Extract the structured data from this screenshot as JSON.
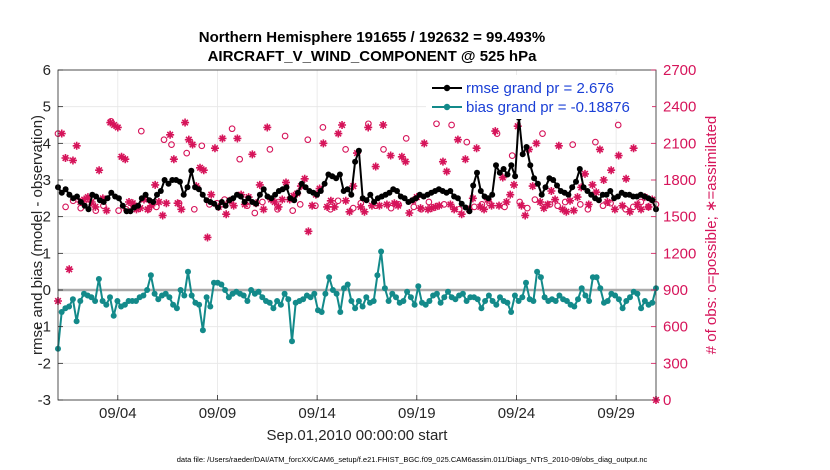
{
  "chart_data": {
    "type": "line",
    "title_line1": "Northern Hemisphere 191655 / 192632 = 99.493%",
    "title_line2": "AIRCRAFT_V_WIND_COMPONENT @ 525 hPa",
    "ylabel": "rmse and bias (model - observation)",
    "y2label": "# of obs: o=possible; ∗=assimilated",
    "xlabel": "Sep.01,2010 00:00:00 start",
    "footnote": "data file: /Users/raeder/DAI/ATM_forcXX/CAM6_setup/f.e21.FHIST_BGC.f09_025.CAM6assim.011/Diags_NTrS_2010-09/obs_diag_output.nc",
    "xlim": [
      0.0,
      30.0
    ],
    "ylim": [
      -3,
      6
    ],
    "y2lim": [
      0,
      2700
    ],
    "yticks": [
      "-3",
      "-2",
      "-1",
      "0",
      "1",
      "2",
      "3",
      "4",
      "5",
      "6"
    ],
    "y2ticks": [
      "0",
      "300",
      "600",
      "900",
      "1200",
      "1500",
      "1800",
      "2100",
      "2400",
      "2700"
    ],
    "xtick_days": [
      3,
      8,
      13,
      18,
      23,
      28
    ],
    "xtick_labels": [
      "09/04",
      "09/09",
      "09/14",
      "09/19",
      "09/24",
      "09/29"
    ],
    "colors": {
      "rmse": "#000000",
      "bias": "#138a8a",
      "obs": "#d6145a",
      "legend_text": "#1a3fd6",
      "zero": "#aaaaaa"
    },
    "series": [
      {
        "name": "rmse grand pr = 2.676",
        "values": [
          2.8,
          2.65,
          2.75,
          2.6,
          2.5,
          2.55,
          2.4,
          2.3,
          2.2,
          2.6,
          2.55,
          2.45,
          2.4,
          2.5,
          2.65,
          2.55,
          2.5,
          2.3,
          2.15,
          2.15,
          2.25,
          2.3,
          2.5,
          2.6,
          2.45,
          2.4,
          2.6,
          2.7,
          3.0,
          2.9,
          3.0,
          3.0,
          2.95,
          2.6,
          2.8,
          3.25,
          2.8,
          2.75,
          2.6,
          2.45,
          2.4,
          2.35,
          2.25,
          2.4,
          2.3,
          2.45,
          2.5,
          2.6,
          2.55,
          2.4,
          2.5,
          2.4,
          2.35,
          2.6,
          2.75,
          2.55,
          2.5,
          2.6,
          2.7,
          2.75,
          2.8,
          2.5,
          2.45,
          2.65,
          2.9,
          2.8,
          2.7,
          2.65,
          2.6,
          2.7,
          2.9,
          3.15,
          3.1,
          3.05,
          3.15,
          2.7,
          2.75,
          2.6,
          3.5,
          3.8,
          2.5,
          2.45,
          2.6,
          2.4,
          2.5,
          2.55,
          2.6,
          2.65,
          2.75,
          2.7,
          2.55,
          2.5,
          2.4,
          2.45,
          2.5,
          2.6,
          2.55,
          2.6,
          2.65,
          2.7,
          2.75,
          2.7,
          2.65,
          2.7,
          2.55,
          2.5,
          2.35,
          2.25,
          2.15,
          2.85,
          3.2,
          2.7,
          2.55,
          2.5,
          2.6,
          3.4,
          3.2,
          3.3,
          3.15,
          3.4,
          3.1,
          4.7,
          3.7,
          3.9,
          3.4,
          3.05,
          2.9,
          2.6,
          2.8,
          3.05,
          3.0,
          2.85,
          2.7,
          2.65,
          2.6,
          2.8,
          2.95,
          3.3,
          2.8,
          2.7,
          2.6,
          2.5,
          2.45,
          2.6,
          2.6,
          2.7,
          2.5,
          2.55,
          2.65,
          2.6,
          2.6,
          2.55,
          2.55,
          2.6,
          2.55,
          2.5,
          2.45,
          2.2
        ]
      },
      {
        "name": "bias grand pr = -0.18876",
        "values": [
          -1.6,
          -0.6,
          -0.5,
          -0.45,
          -0.25,
          -0.85,
          -0.3,
          -0.1,
          -0.15,
          -0.2,
          -0.3,
          0.3,
          -0.3,
          -0.4,
          -0.2,
          -0.7,
          -0.3,
          -0.45,
          -0.4,
          -0.3,
          -0.3,
          -0.3,
          -0.2,
          -0.15,
          0.0,
          0.4,
          -0.1,
          -0.25,
          -0.15,
          -0.1,
          -0.2,
          -0.4,
          -0.5,
          0.0,
          -0.15,
          0.5,
          -0.15,
          -0.35,
          -0.4,
          -1.1,
          -0.2,
          -0.45,
          0.2,
          0.2,
          0.15,
          0.0,
          -0.2,
          -0.1,
          -0.05,
          -0.1,
          -0.15,
          -0.3,
          0.0,
          -0.1,
          -0.05,
          -0.2,
          -0.3,
          -0.35,
          -0.5,
          -0.3,
          -0.4,
          -0.1,
          -0.25,
          -1.4,
          -0.35,
          -0.3,
          -0.25,
          -0.15,
          -0.2,
          -0.1,
          -0.55,
          -0.6,
          -0.1,
          0.35,
          0.0,
          -0.1,
          -0.6,
          0.05,
          0.15,
          -0.3,
          -0.5,
          -0.3,
          -0.45,
          -0.2,
          -0.35,
          -0.3,
          0.4,
          1.05,
          0.05,
          -0.3,
          -0.1,
          -0.2,
          -0.35,
          -0.3,
          -0.05,
          -0.2,
          -0.4,
          0.1,
          -0.35,
          -0.4,
          -0.3,
          -0.15,
          -0.1,
          -0.35,
          -0.2,
          -0.05,
          -0.2,
          -0.25,
          -0.15,
          -0.1,
          -0.3,
          -0.2,
          -0.2,
          -0.25,
          -0.5,
          -0.3,
          -0.15,
          -0.3,
          -0.4,
          -0.2,
          -0.3,
          -0.35,
          -0.6,
          -0.15,
          -0.3,
          -0.2,
          0.2,
          -0.25,
          -0.3,
          0.5,
          0.35,
          -0.2,
          -0.3,
          -0.25,
          -0.3,
          -0.15,
          -0.25,
          -0.3,
          -0.4,
          -0.45,
          -0.25,
          0.05,
          -0.15,
          -0.3,
          0.35,
          0.35,
          0.05,
          -0.35,
          -0.3,
          -0.1,
          -0.15,
          -0.25,
          -0.5,
          -0.3,
          -0.2,
          -0.05,
          -0.1,
          -0.5,
          -0.3,
          -0.4,
          -0.35,
          0.05
        ]
      },
      {
        "name": "# of obs assimilated",
        "values": [
          810,
          2180,
          1980,
          1070,
          1960,
          2080,
          1620,
          1640,
          1660,
          1620,
          1580,
          1880,
          1650,
          1550,
          2270,
          2250,
          2230,
          1990,
          1970,
          1620,
          1610,
          1560,
          1570,
          1640,
          1560,
          1590,
          1760,
          1620,
          1510,
          1610,
          2170,
          1970,
          1610,
          1560,
          2270,
          2130,
          2090,
          1750,
          1900,
          1880,
          1330,
          1680,
          2060,
          1580,
          2140,
          1520,
          1630,
          1590,
          2140,
          1680,
          1600,
          1660,
          2010,
          1610,
          1760,
          1560,
          2230,
          1640,
          1620,
          1580,
          1640,
          1780,
          1640,
          1670,
          1690,
          1750,
          1810,
          1380,
          1590,
          1680,
          1730,
          2100,
          1580,
          1630,
          1580,
          2180,
          2250,
          1630,
          1540,
          1750,
          2020,
          1580,
          1540,
          2230,
          1590,
          1910,
          1590,
          2250,
          1600,
          2000,
          1610,
          1590,
          1990,
          1950,
          1530,
          1630,
          1660,
          1570,
          2100,
          1560,
          1570,
          1580,
          1590,
          1950,
          1870,
          1600,
          1560,
          2130,
          1520,
          1970,
          1560,
          1650,
          2060,
          1580,
          1560,
          1640,
          1590,
          2200,
          1590,
          1820,
          1620,
          1680,
          1760,
          2240,
          1590,
          1510,
          2050,
          1750,
          2100,
          1620,
          1570,
          1600,
          1710,
          1640,
          2080,
          1560,
          1540,
          1630,
          1550,
          1660,
          1740,
          1850,
          1600,
          1760,
          1700,
          2050,
          1800,
          1620,
          1880,
          1560,
          2000,
          1590,
          1810,
          1540,
          2060,
          1600,
          1560,
          1660,
          1580,
          1640,
          0
        ]
      },
      {
        "name": "# of obs possible",
        "values": [
          2180,
          1580,
          1630,
          1570,
          1600,
          1550,
          1590,
          2280,
          1550,
          1560,
          1580,
          2200,
          1560,
          1580,
          2130,
          2090,
          1610,
          2020,
          1560,
          2080,
          1600,
          1610,
          1640,
          2220,
          1970,
          1590,
          1530,
          1620,
          2050,
          1560,
          2160,
          1550,
          1600,
          2130,
          1590,
          2230,
          1560,
          1630,
          2050,
          1570,
          1610,
          2260,
          1590,
          2050,
          1570,
          1600,
          2140,
          1580,
          1560,
          1620,
          2260,
          1600,
          2250,
          1560,
          2110,
          1580,
          1600,
          1610,
          2180,
          1580,
          2000,
          1620,
          1570,
          1640,
          2180,
          1600,
          1590,
          1620,
          2090,
          1600,
          1560,
          2110,
          1590,
          1610,
          2250,
          1560,
          1580,
          1620,
          1580,
          1600
        ]
      }
    ],
    "legend": [
      "rmse grand pr = 2.676",
      "bias grand pr = -0.18876"
    ]
  }
}
